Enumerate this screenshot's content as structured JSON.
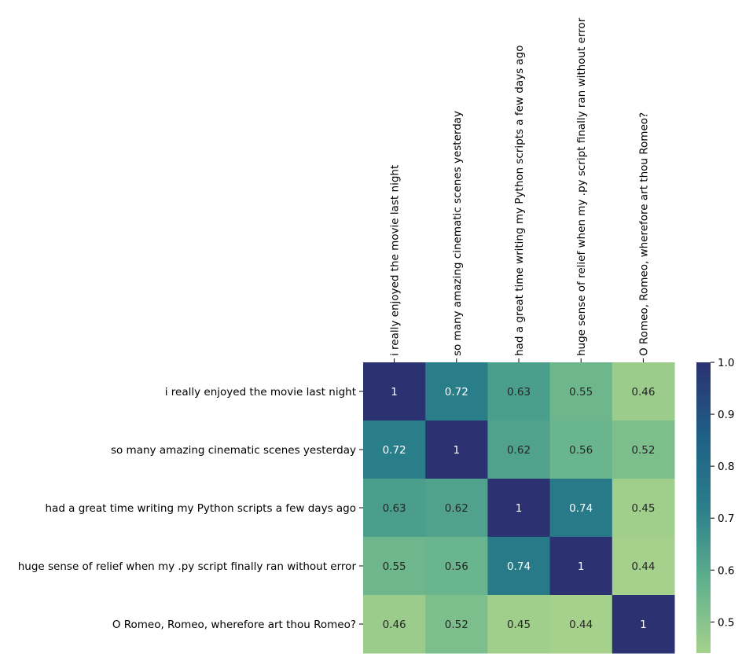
{
  "chart_data": {
    "type": "heatmap",
    "title": "",
    "xlabel": "",
    "ylabel": "",
    "labels": [
      "i really enjoyed the movie last night",
      "so many amazing cinematic scenes yesterday",
      "had a great time writing my Python scripts a few days ago",
      "huge sense of relief when my .py script finally ran without error",
      "O Romeo, Romeo, wherefore art thou Romeo?"
    ],
    "values": [
      [
        1,
        0.72,
        0.63,
        0.55,
        0.46
      ],
      [
        0.72,
        1,
        0.62,
        0.56,
        0.52
      ],
      [
        0.63,
        0.62,
        1,
        0.74,
        0.45
      ],
      [
        0.55,
        0.56,
        0.74,
        1,
        0.44
      ],
      [
        0.46,
        0.52,
        0.45,
        0.44,
        1
      ]
    ],
    "colorbar": {
      "range": [
        0.44,
        1.0
      ],
      "ticks": [
        "0.5",
        "0.6",
        "0.7",
        "0.8",
        "0.9",
        "1.0"
      ],
      "colormap": "crest",
      "stops": [
        "#a5d18c",
        "#5fb08d",
        "#2a7e8a",
        "#1f5f86",
        "#2b3171"
      ]
    }
  }
}
